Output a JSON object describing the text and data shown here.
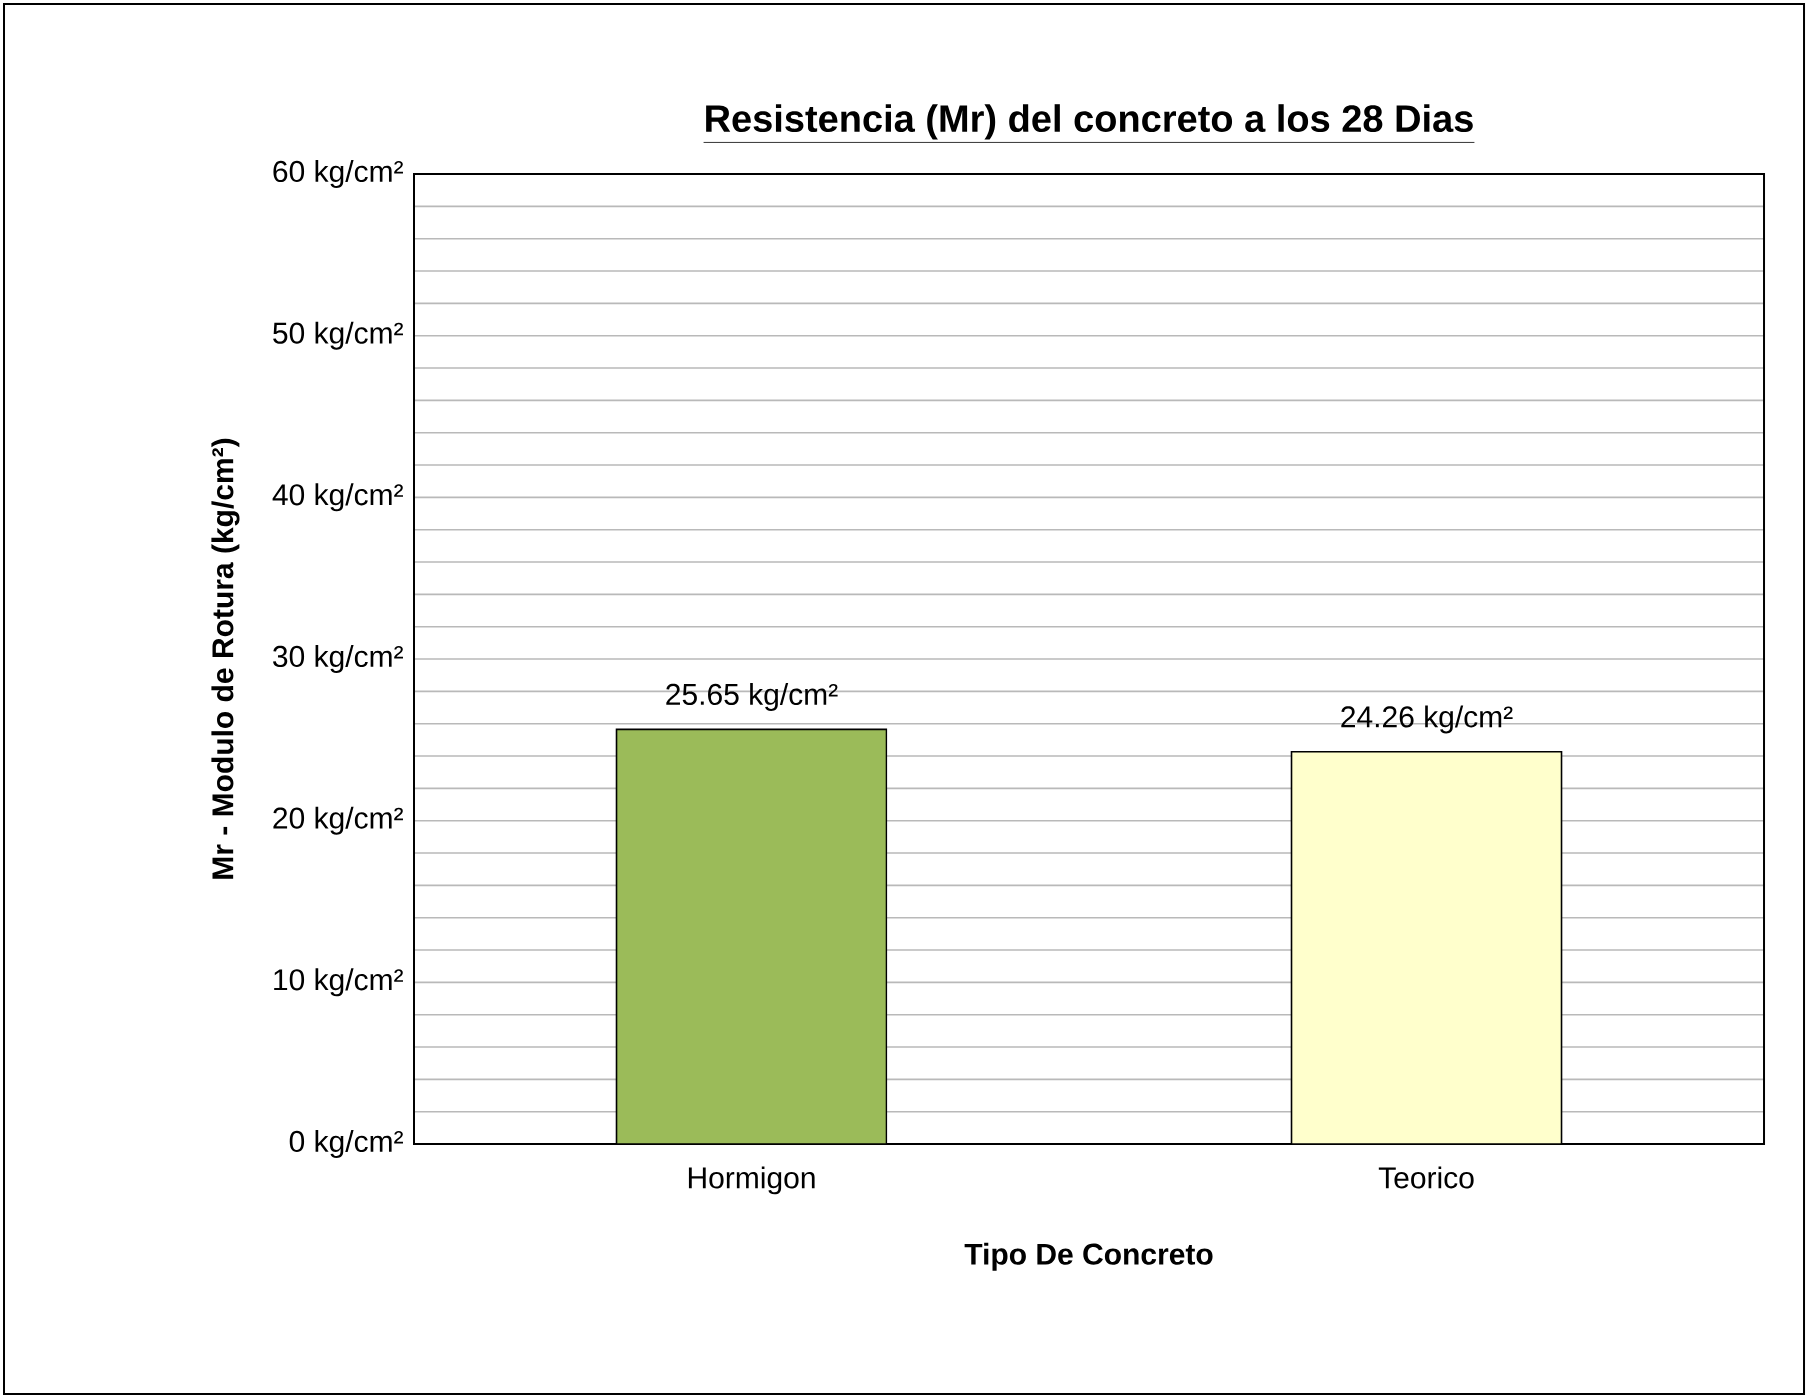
{
  "chart_data": {
    "type": "bar",
    "title": "Resistencia (Mr) del concreto a los 28 Dias",
    "xlabel": "Tipo De Concreto",
    "ylabel": "Mr - Modulo de Rotura (kg/cm²)",
    "categories": [
      "Hormigon",
      "Teorico"
    ],
    "values": [
      25.65,
      24.26
    ],
    "colors": [
      "#9bbb59",
      "#ffffcc"
    ],
    "value_labels": [
      "25.65 kg/cm²",
      "24.26 kg/cm²"
    ],
    "ylim": [
      0,
      60
    ],
    "yticks": [
      {
        "value": 0,
        "label": "0 kg/cm²"
      },
      {
        "value": 2,
        "label": null
      },
      {
        "value": 4,
        "label": null
      },
      {
        "value": 6,
        "label": null
      },
      {
        "value": 8,
        "label": null
      },
      {
        "value": 10,
        "label": "10 kg/cm²"
      },
      {
        "value": 12,
        "label": null
      },
      {
        "value": 14,
        "label": null
      },
      {
        "value": 16,
        "label": null
      },
      {
        "value": 18,
        "label": null
      },
      {
        "value": 20,
        "label": "20 kg/cm²"
      },
      {
        "value": 22,
        "label": null
      },
      {
        "value": 24,
        "label": null
      },
      {
        "value": 26,
        "label": null
      },
      {
        "value": 28,
        "label": null
      },
      {
        "value": 30,
        "label": "30 kg/cm²"
      },
      {
        "value": 32,
        "label": null
      },
      {
        "value": 34,
        "label": null
      },
      {
        "value": 36,
        "label": null
      },
      {
        "value": 38,
        "label": null
      },
      {
        "value": 40,
        "label": "40 kg/cm²"
      },
      {
        "value": 42,
        "label": null
      },
      {
        "value": 44,
        "label": null
      },
      {
        "value": 46,
        "label": null
      },
      {
        "value": 48,
        "label": null
      },
      {
        "value": 50,
        "label": "50 kg/cm²"
      },
      {
        "value": 52,
        "label": null
      },
      {
        "value": 54,
        "label": null
      },
      {
        "value": 56,
        "label": null
      },
      {
        "value": 58,
        "label": null
      },
      {
        "value": 60,
        "label": "60 kg/cm²"
      }
    ],
    "grid": "y"
  }
}
